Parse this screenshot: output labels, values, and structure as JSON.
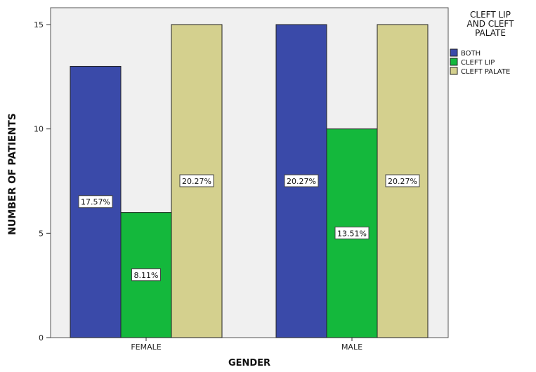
{
  "chart_data": {
    "type": "bar",
    "title": "",
    "xlabel": "GENDER",
    "ylabel": "NUMBER OF PATIENTS",
    "categories": [
      "FEMALE",
      "MALE"
    ],
    "ylim": [
      0,
      15
    ],
    "yticks": [
      0,
      5,
      10,
      15
    ],
    "legend": {
      "title": "CLEFT LIP AND CLEFT PALATE",
      "title_lines": [
        "CLEFT LIP",
        "AND CLEFT",
        "PALATE"
      ],
      "placement": "right"
    },
    "series": [
      {
        "name": "BOTH",
        "color": "#3a4aa9",
        "values": [
          13,
          15
        ],
        "labels": [
          "17.57%",
          "20.27%"
        ]
      },
      {
        "name": "CLEFT LIP",
        "color": "#14b83c",
        "values": [
          6,
          10
        ],
        "labels": [
          "8.11%",
          "13.51%"
        ]
      },
      {
        "name": "CLEFT PALATE",
        "color": "#d4d08e",
        "values": [
          15,
          15
        ],
        "labels": [
          "20.27%",
          "20.27%"
        ]
      }
    ],
    "plot_background": "#f0f0f0",
    "grid": false
  }
}
